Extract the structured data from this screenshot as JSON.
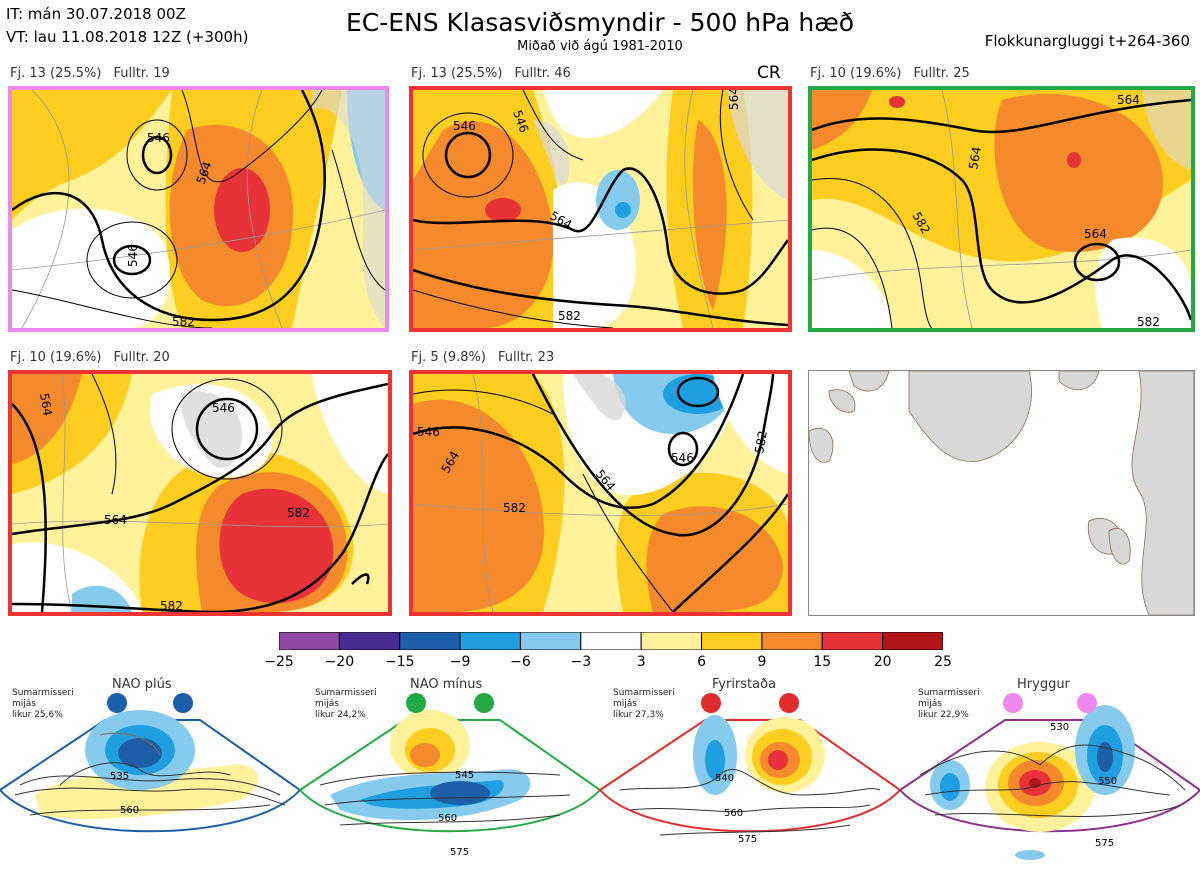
{
  "header": {
    "it_line": "IT: mán 30.07.2018 00Z",
    "vt_line": "VT: lau 11.08.2018 12Z  (+300h)",
    "title": "EC-ENS Klasasviðsmyndir - 500 hPa hæð",
    "subtitle": "Miðað við ágú 1981-2010",
    "window": "Flokkunargluggi t+264-360"
  },
  "panels": [
    {
      "count": "Fj. 13 (25.5%)",
      "rep": "Fulltr. 19",
      "border": "#ee88ee",
      "tag": "",
      "contours": [
        "546",
        "564",
        "546",
        "582"
      ]
    },
    {
      "count": "Fj. 13 (25.5%)",
      "rep": "Fulltr. 46",
      "border": "#ee3333",
      "tag": "CR",
      "contours": [
        "546",
        "546",
        "564",
        "564",
        "582"
      ]
    },
    {
      "count": "Fj. 10 (19.6%)",
      "rep": "Fulltr. 25",
      "border": "#22aa44",
      "tag": "",
      "contours": [
        "564",
        "564",
        "582",
        "564",
        "582"
      ]
    },
    {
      "count": "Fj. 10 (19.6%)",
      "rep": "Fulltr. 20",
      "border": "#ee3333",
      "tag": "",
      "contours": [
        "564",
        "546",
        "564",
        "582",
        "582"
      ]
    },
    {
      "count": "Fj. 5 (9.8%)",
      "rep": "Fulltr. 23",
      "border": "#ee3333",
      "tag": "",
      "contours": [
        "546",
        "564",
        "546",
        "564",
        "582",
        "582"
      ]
    }
  ],
  "colorbar": {
    "ticks": [
      "−25",
      "−20",
      "−15",
      "−9",
      "−6",
      "−3",
      "3",
      "6",
      "9",
      "15",
      "20",
      "25"
    ],
    "colors": [
      "#8f4aa6",
      "#4b2c91",
      "#1c5fa8",
      "#1f9fe0",
      "#86cbee",
      "#ffffff",
      "#fff29a",
      "#fdcd1f",
      "#f58a2c",
      "#e8323a",
      "#b0151a"
    ]
  },
  "regimes": [
    {
      "name": "NAO plús",
      "season": "Sumarmisseri",
      "mean": "mijás",
      "prob": "likur 25,6%",
      "color": "#1b5ea8",
      "contours": [
        "535",
        "560"
      ]
    },
    {
      "name": "NAO mínus",
      "season": "Sumarmisseri",
      "mean": "mijás",
      "prob": "likur 24,2%",
      "color": "#22aa44",
      "contours": [
        "545",
        "560",
        "575"
      ]
    },
    {
      "name": "Fyrirstaða",
      "season": "Sumarmisseri",
      "mean": "mijás",
      "prob": "likur 27,3%",
      "color": "#e22b2b",
      "contours": [
        "540",
        "560",
        "575"
      ]
    },
    {
      "name": "Hryggur",
      "season": "Sumarmisseri",
      "mean": "mijás",
      "prob": "likur 22,9%",
      "color": "#8e2e8e",
      "contours": [
        "530",
        "550",
        "575"
      ]
    }
  ],
  "icons": {
    "dot": "circle-marker-icon"
  }
}
